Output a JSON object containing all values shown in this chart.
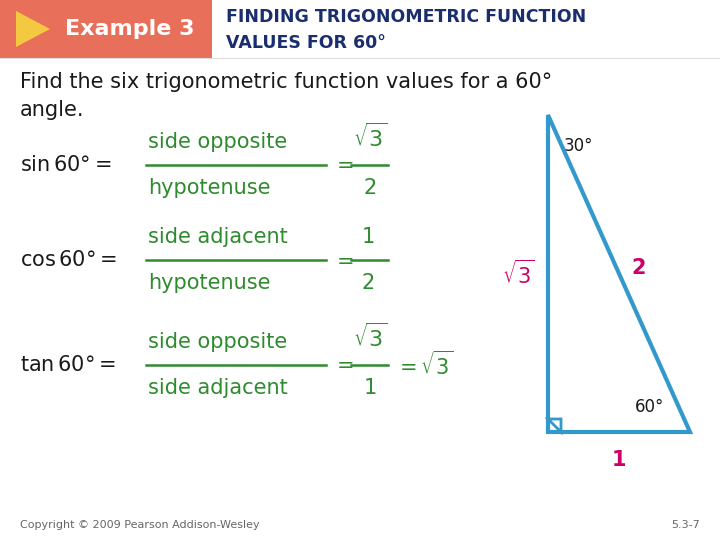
{
  "bg_color": "#ffffff",
  "header_bg": "#e8705a",
  "header_text_color": "#ffffff",
  "header_title_color": "#1a2e6e",
  "header_example": "Example 3",
  "header_title_line1": "FINDING TRIGONOMETRIC FUNCTION",
  "header_title_line2": "VALUES FOR 60°",
  "body_text_color": "#1a1a1a",
  "green_color": "#2e8b2e",
  "magenta_color": "#cc0066",
  "blue_triangle": "#3399cc",
  "intro_line1": "Find the six trigonometric function values for a 60°",
  "intro_line2": "angle.",
  "copyright": "Copyright © 2009 Pearson Addison-Wesley",
  "page_ref": "5.3-7",
  "arrow_color": "#f5c842"
}
